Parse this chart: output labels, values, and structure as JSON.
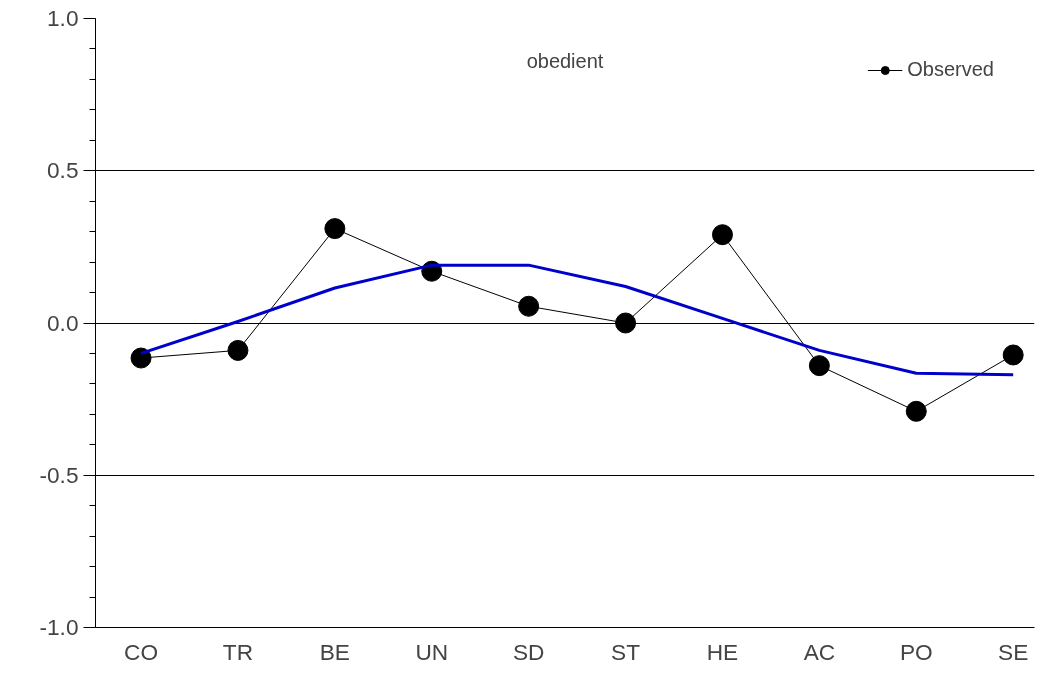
{
  "chart_data": {
    "type": "line",
    "title": "obedient",
    "categories": [
      "CO",
      "TR",
      "BE",
      "UN",
      "SD",
      "ST",
      "HE",
      "AC",
      "PO",
      "SE"
    ],
    "series": [
      {
        "name": "Observed",
        "color": "#000000",
        "marker": "circle",
        "values": [
          -0.115,
          -0.09,
          0.31,
          0.17,
          0.055,
          0.0,
          0.29,
          -0.14,
          -0.29,
          -0.105
        ]
      },
      {
        "color": "#0000cc",
        "marker": "none",
        "values": [
          -0.1,
          0.005,
          0.115,
          0.19,
          0.19,
          0.12,
          0.015,
          -0.09,
          -0.165,
          -0.17
        ]
      }
    ],
    "ylim": [
      -1.0,
      1.0
    ],
    "yticks": [
      {
        "value": -1.0,
        "label": "-1.0"
      },
      {
        "value": -0.5,
        "label": "-0.5"
      },
      {
        "value": 0.0,
        "label": "0.0"
      },
      {
        "value": 0.5,
        "label": "0.5"
      },
      {
        "value": 1.0,
        "label": "1.0"
      }
    ],
    "grid": "y",
    "legend": "top right"
  }
}
